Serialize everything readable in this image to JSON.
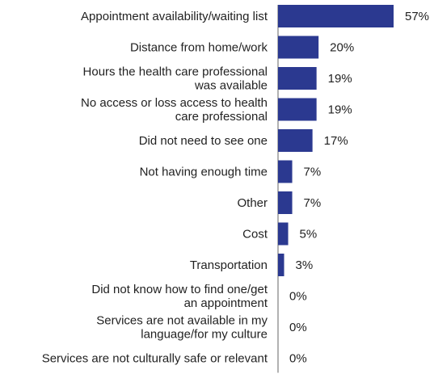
{
  "chart_data": {
    "type": "bar",
    "orientation": "horizontal",
    "title": "",
    "xlabel": "",
    "ylabel": "",
    "xlim": [
      0,
      57
    ],
    "grid": false,
    "legend": "none",
    "bar_color": "#2b3990",
    "axis_color": "#666666",
    "value_suffix": "%",
    "categories": [
      [
        "Appointment availability/waiting list"
      ],
      [
        "Distance from home/work"
      ],
      [
        "Hours the health care professional",
        "was available"
      ],
      [
        "No access or loss access to health",
        "care professional"
      ],
      [
        "Did not need to see one"
      ],
      [
        "Not having enough time"
      ],
      [
        "Other"
      ],
      [
        "Cost"
      ],
      [
        "Transportation"
      ],
      [
        "Did not know how to find one/get",
        "an appointment"
      ],
      [
        "Services are not available in my",
        "language/for my culture"
      ],
      [
        "Services are not culturally safe or relevant"
      ]
    ],
    "values": [
      57,
      20,
      19,
      19,
      17,
      7,
      7,
      5,
      3,
      0,
      0,
      0
    ],
    "labels": [
      "57%",
      "20%",
      "19%",
      "19%",
      "17%",
      "7%",
      "7%",
      "5%",
      "3%",
      "0%",
      "0%",
      "0%"
    ]
  }
}
